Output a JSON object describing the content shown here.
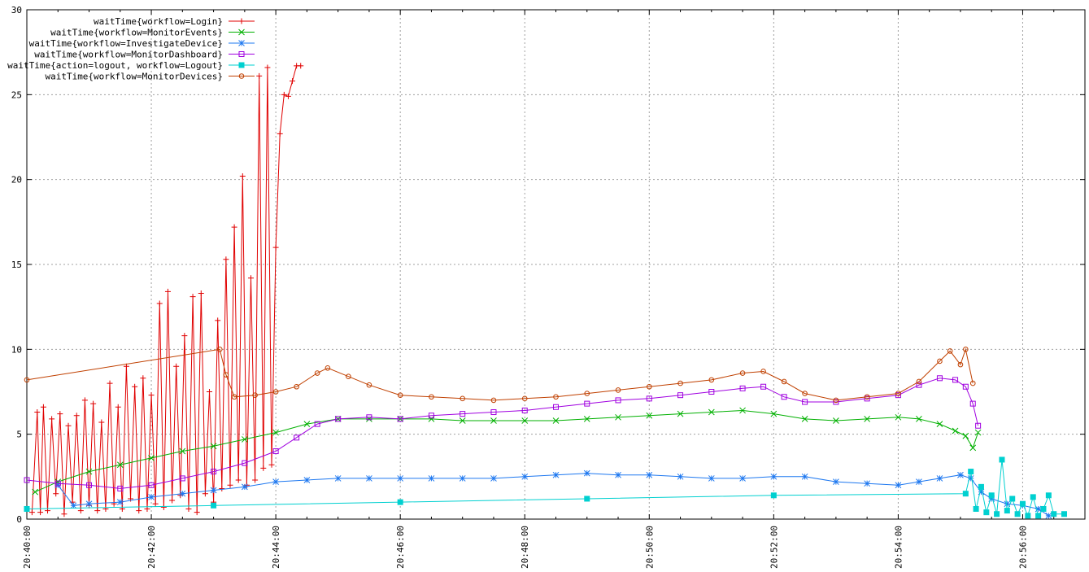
{
  "chart_data": {
    "type": "line",
    "title": "",
    "xlabel": "",
    "ylabel": "",
    "xlim": [
      "20:40:00",
      "20:57:00"
    ],
    "ylim": [
      0,
      30
    ],
    "x_ticks": [
      "20:40:00",
      "20:42:00",
      "20:44:00",
      "20:46:00",
      "20:48:00",
      "20:50:00",
      "20:52:00",
      "20:54:00",
      "20:56:00"
    ],
    "y_ticks": [
      "0",
      "5",
      "10",
      "15",
      "20",
      "25",
      "30"
    ],
    "grid": true,
    "legend_position": "top-left",
    "series": [
      {
        "name": "waitTime{workflow=Login}",
        "color": "#e00000",
        "marker": "plus",
        "points": [
          [
            "20:40:05",
            0.4
          ],
          [
            "20:40:10",
            6.3
          ],
          [
            "20:40:13",
            0.4
          ],
          [
            "20:40:16",
            6.6
          ],
          [
            "20:40:20",
            0.5
          ],
          [
            "20:40:24",
            5.9
          ],
          [
            "20:40:28",
            1.5
          ],
          [
            "20:40:32",
            6.2
          ],
          [
            "20:40:36",
            0.3
          ],
          [
            "20:40:40",
            5.5
          ],
          [
            "20:40:44",
            1.0
          ],
          [
            "20:40:48",
            6.1
          ],
          [
            "20:40:52",
            0.5
          ],
          [
            "20:40:56",
            7.0
          ],
          [
            "20:41:00",
            0.8
          ],
          [
            "20:41:04",
            6.8
          ],
          [
            "20:41:08",
            0.5
          ],
          [
            "20:41:12",
            5.7
          ],
          [
            "20:41:16",
            0.6
          ],
          [
            "20:41:20",
            8.0
          ],
          [
            "20:41:24",
            0.9
          ],
          [
            "20:41:28",
            6.6
          ],
          [
            "20:41:32",
            0.6
          ],
          [
            "20:41:36",
            9.0
          ],
          [
            "20:41:40",
            1.2
          ],
          [
            "20:41:44",
            7.8
          ],
          [
            "20:41:48",
            0.5
          ],
          [
            "20:41:52",
            8.3
          ],
          [
            "20:41:56",
            0.6
          ],
          [
            "20:42:00",
            7.3
          ],
          [
            "20:42:04",
            0.9
          ],
          [
            "20:42:08",
            12.7
          ],
          [
            "20:42:12",
            0.7
          ],
          [
            "20:42:16",
            13.4
          ],
          [
            "20:42:20",
            1.1
          ],
          [
            "20:42:24",
            9.0
          ],
          [
            "20:42:28",
            1.4
          ],
          [
            "20:42:32",
            10.8
          ],
          [
            "20:42:36",
            0.6
          ],
          [
            "20:42:40",
            13.1
          ],
          [
            "20:42:44",
            0.4
          ],
          [
            "20:42:48",
            13.3
          ],
          [
            "20:42:52",
            1.5
          ],
          [
            "20:42:56",
            7.5
          ],
          [
            "20:43:00",
            1.0
          ],
          [
            "20:43:04",
            11.7
          ],
          [
            "20:43:08",
            1.8
          ],
          [
            "20:43:12",
            15.3
          ],
          [
            "20:43:16",
            2.0
          ],
          [
            "20:43:20",
            17.2
          ],
          [
            "20:43:24",
            2.3
          ],
          [
            "20:43:28",
            20.2
          ],
          [
            "20:43:32",
            2.0
          ],
          [
            "20:43:36",
            14.2
          ],
          [
            "20:43:40",
            2.3
          ],
          [
            "20:43:44",
            26.1
          ],
          [
            "20:43:48",
            3.0
          ],
          [
            "20:43:52",
            26.6
          ],
          [
            "20:43:56",
            3.2
          ],
          [
            "20:44:00",
            16.0
          ],
          [
            "20:44:04",
            22.7
          ],
          [
            "20:44:08",
            25.0
          ],
          [
            "20:44:12",
            24.9
          ],
          [
            "20:44:16",
            25.8
          ],
          [
            "20:44:20",
            26.7
          ],
          [
            "20:44:24",
            26.7
          ]
        ]
      },
      {
        "name": "waitTime{workflow=MonitorEvents}",
        "color": "#00b000",
        "marker": "cross",
        "points": [
          [
            "20:40:08",
            1.6
          ],
          [
            "20:40:30",
            2.2
          ],
          [
            "20:41:00",
            2.8
          ],
          [
            "20:41:30",
            3.2
          ],
          [
            "20:42:00",
            3.6
          ],
          [
            "20:42:30",
            4.0
          ],
          [
            "20:43:00",
            4.3
          ],
          [
            "20:43:30",
            4.7
          ],
          [
            "20:44:00",
            5.1
          ],
          [
            "20:44:30",
            5.6
          ],
          [
            "20:45:00",
            5.9
          ],
          [
            "20:45:30",
            5.9
          ],
          [
            "20:46:00",
            5.9
          ],
          [
            "20:46:30",
            5.9
          ],
          [
            "20:47:00",
            5.8
          ],
          [
            "20:47:30",
            5.8
          ],
          [
            "20:48:00",
            5.8
          ],
          [
            "20:48:30",
            5.8
          ],
          [
            "20:49:00",
            5.9
          ],
          [
            "20:49:30",
            6.0
          ],
          [
            "20:50:00",
            6.1
          ],
          [
            "20:50:30",
            6.2
          ],
          [
            "20:51:00",
            6.3
          ],
          [
            "20:51:30",
            6.4
          ],
          [
            "20:52:00",
            6.2
          ],
          [
            "20:52:30",
            5.9
          ],
          [
            "20:53:00",
            5.8
          ],
          [
            "20:53:30",
            5.9
          ],
          [
            "20:54:00",
            6.0
          ],
          [
            "20:54:20",
            5.9
          ],
          [
            "20:54:40",
            5.6
          ],
          [
            "20:54:55",
            5.2
          ],
          [
            "20:55:05",
            4.9
          ],
          [
            "20:55:12",
            4.2
          ],
          [
            "20:55:17",
            5.1
          ]
        ]
      },
      {
        "name": "waitTime{workflow=InvestigateDevice}",
        "color": "#1e78f0",
        "marker": "star",
        "points": [
          [
            "20:40:30",
            2.0
          ],
          [
            "20:40:45",
            0.8
          ],
          [
            "20:41:00",
            0.9
          ],
          [
            "20:41:30",
            1.0
          ],
          [
            "20:42:00",
            1.3
          ],
          [
            "20:42:30",
            1.5
          ],
          [
            "20:43:00",
            1.7
          ],
          [
            "20:43:30",
            1.9
          ],
          [
            "20:44:00",
            2.2
          ],
          [
            "20:44:30",
            2.3
          ],
          [
            "20:45:00",
            2.4
          ],
          [
            "20:45:30",
            2.4
          ],
          [
            "20:46:00",
            2.4
          ],
          [
            "20:46:30",
            2.4
          ],
          [
            "20:47:00",
            2.4
          ],
          [
            "20:47:30",
            2.4
          ],
          [
            "20:48:00",
            2.5
          ],
          [
            "20:48:30",
            2.6
          ],
          [
            "20:49:00",
            2.7
          ],
          [
            "20:49:30",
            2.6
          ],
          [
            "20:50:00",
            2.6
          ],
          [
            "20:50:30",
            2.5
          ],
          [
            "20:51:00",
            2.4
          ],
          [
            "20:51:30",
            2.4
          ],
          [
            "20:52:00",
            2.5
          ],
          [
            "20:52:30",
            2.5
          ],
          [
            "20:53:00",
            2.2
          ],
          [
            "20:53:30",
            2.1
          ],
          [
            "20:54:00",
            2.0
          ],
          [
            "20:54:20",
            2.2
          ],
          [
            "20:54:40",
            2.4
          ],
          [
            "20:55:00",
            2.6
          ],
          [
            "20:55:10",
            2.4
          ],
          [
            "20:55:20",
            1.6
          ],
          [
            "20:55:30",
            1.2
          ],
          [
            "20:55:45",
            0.9
          ],
          [
            "20:56:00",
            0.8
          ],
          [
            "20:56:15",
            0.6
          ],
          [
            "20:56:25",
            0.2
          ]
        ]
      },
      {
        "name": "waitTime{workflow=MonitorDashboard}",
        "color": "#a000e0",
        "marker": "square",
        "points": [
          [
            "20:40:00",
            2.3
          ],
          [
            "20:40:30",
            2.1
          ],
          [
            "20:41:00",
            2.0
          ],
          [
            "20:41:30",
            1.8
          ],
          [
            "20:42:00",
            2.0
          ],
          [
            "20:42:30",
            2.4
          ],
          [
            "20:43:00",
            2.8
          ],
          [
            "20:43:30",
            3.3
          ],
          [
            "20:44:00",
            4.0
          ],
          [
            "20:44:20",
            4.8
          ],
          [
            "20:44:40",
            5.6
          ],
          [
            "20:45:00",
            5.9
          ],
          [
            "20:45:30",
            6.0
          ],
          [
            "20:46:00",
            5.9
          ],
          [
            "20:46:30",
            6.1
          ],
          [
            "20:47:00",
            6.2
          ],
          [
            "20:47:30",
            6.3
          ],
          [
            "20:48:00",
            6.4
          ],
          [
            "20:48:30",
            6.6
          ],
          [
            "20:49:00",
            6.8
          ],
          [
            "20:49:30",
            7.0
          ],
          [
            "20:50:00",
            7.1
          ],
          [
            "20:50:30",
            7.3
          ],
          [
            "20:51:00",
            7.5
          ],
          [
            "20:51:30",
            7.7
          ],
          [
            "20:51:50",
            7.8
          ],
          [
            "20:52:10",
            7.2
          ],
          [
            "20:52:30",
            6.9
          ],
          [
            "20:53:00",
            6.9
          ],
          [
            "20:53:30",
            7.1
          ],
          [
            "20:54:00",
            7.3
          ],
          [
            "20:54:20",
            7.9
          ],
          [
            "20:54:40",
            8.3
          ],
          [
            "20:54:55",
            8.2
          ],
          [
            "20:55:05",
            7.8
          ],
          [
            "20:55:12",
            6.8
          ],
          [
            "20:55:17",
            5.5
          ]
        ]
      },
      {
        "name": "waitTime{action=logout, workflow=Logout}",
        "color": "#00d0d0",
        "marker": "filled-square",
        "points": [
          [
            "20:40:00",
            0.6
          ],
          [
            "20:43:00",
            0.8
          ],
          [
            "20:46:00",
            1.0
          ],
          [
            "20:49:00",
            1.2
          ],
          [
            "20:52:00",
            1.4
          ],
          [
            "20:55:05",
            1.5
          ],
          [
            "20:55:10",
            2.8
          ],
          [
            "20:55:15",
            0.6
          ],
          [
            "20:55:20",
            1.9
          ],
          [
            "20:55:25",
            0.4
          ],
          [
            "20:55:30",
            1.4
          ],
          [
            "20:55:35",
            0.3
          ],
          [
            "20:55:40",
            3.5
          ],
          [
            "20:55:45",
            0.5
          ],
          [
            "20:55:50",
            1.2
          ],
          [
            "20:55:55",
            0.3
          ],
          [
            "20:56:00",
            0.9
          ],
          [
            "20:56:05",
            0.2
          ],
          [
            "20:56:10",
            1.3
          ],
          [
            "20:56:15",
            0.2
          ],
          [
            "20:56:20",
            0.6
          ],
          [
            "20:56:25",
            1.4
          ],
          [
            "20:56:30",
            0.3
          ],
          [
            "20:56:40",
            0.3
          ]
        ]
      },
      {
        "name": "waitTime{workflow=MonitorDevices}",
        "color": "#c04000",
        "marker": "circle",
        "points": [
          [
            "20:40:00",
            8.2
          ],
          [
            "20:43:06",
            10.0
          ],
          [
            "20:43:12",
            8.5
          ],
          [
            "20:43:20",
            7.2
          ],
          [
            "20:43:40",
            7.3
          ],
          [
            "20:44:00",
            7.5
          ],
          [
            "20:44:20",
            7.8
          ],
          [
            "20:44:40",
            8.6
          ],
          [
            "20:44:50",
            8.9
          ],
          [
            "20:45:10",
            8.4
          ],
          [
            "20:45:30",
            7.9
          ],
          [
            "20:46:00",
            7.3
          ],
          [
            "20:46:30",
            7.2
          ],
          [
            "20:47:00",
            7.1
          ],
          [
            "20:47:30",
            7.0
          ],
          [
            "20:48:00",
            7.1
          ],
          [
            "20:48:30",
            7.2
          ],
          [
            "20:49:00",
            7.4
          ],
          [
            "20:49:30",
            7.6
          ],
          [
            "20:50:00",
            7.8
          ],
          [
            "20:50:30",
            8.0
          ],
          [
            "20:51:00",
            8.2
          ],
          [
            "20:51:30",
            8.6
          ],
          [
            "20:51:50",
            8.7
          ],
          [
            "20:52:10",
            8.1
          ],
          [
            "20:52:30",
            7.4
          ],
          [
            "20:53:00",
            7.0
          ],
          [
            "20:53:30",
            7.2
          ],
          [
            "20:54:00",
            7.4
          ],
          [
            "20:54:20",
            8.1
          ],
          [
            "20:54:40",
            9.3
          ],
          [
            "20:54:50",
            9.9
          ],
          [
            "20:55:00",
            9.1
          ],
          [
            "20:55:05",
            10.0
          ],
          [
            "20:55:12",
            8.0
          ]
        ]
      }
    ]
  }
}
